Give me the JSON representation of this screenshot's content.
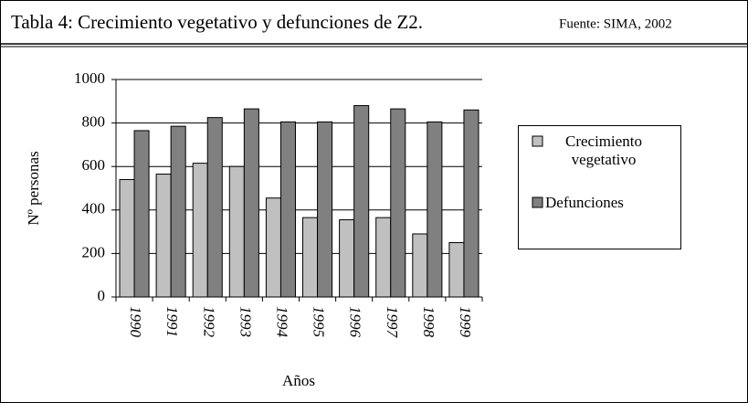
{
  "chart_data": {
    "type": "bar",
    "title": "Tabla 4:  Crecimiento vegetativo y defunciones de Z2.",
    "source": "Fuente: SIMA, 2002",
    "categories": [
      "1990",
      "1991",
      "1992",
      "1993",
      "1994",
      "1995",
      "1996",
      "1997",
      "1998",
      "1999"
    ],
    "series": [
      {
        "name": "Crecimiento vegetativo",
        "color": "#c0c0c0",
        "values": [
          540,
          565,
          615,
          600,
          455,
          365,
          355,
          365,
          290,
          250
        ]
      },
      {
        "name": "Defunciones",
        "color": "#808080",
        "values": [
          765,
          785,
          825,
          865,
          805,
          805,
          880,
          865,
          805,
          860
        ]
      }
    ],
    "ylim": [
      0,
      1000
    ],
    "yticks": [
      0,
      200,
      400,
      600,
      800,
      1000
    ],
    "grid": true,
    "y_label": "Nº personas",
    "x_label": "Años",
    "legend": "right"
  }
}
